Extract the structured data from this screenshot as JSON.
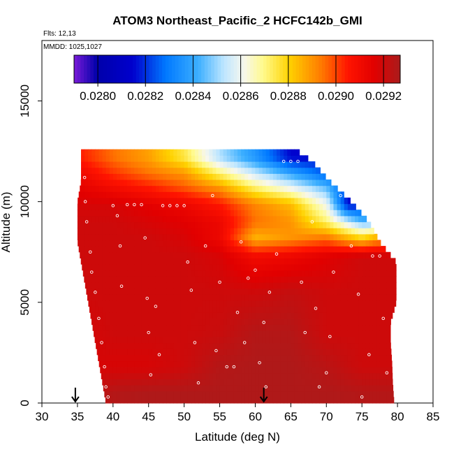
{
  "header": {
    "title": "ATOM3 Northeast_Pacific_2 HCFC142b_GMI",
    "flights": "Flts: 12,13",
    "dates": "MMDD: 1025,1027"
  },
  "colors": {
    "low": "#7a1bd8",
    "mid": "#f7f7ee",
    "high": "#b22222",
    "points": "#ffffff",
    "arrow": "#000000"
  },
  "chart_data": {
    "type": "heatmap",
    "title": "ATOM3 Northeast_Pacific_2 HCFC142b_GMI",
    "xlabel": "Latitude (deg N)",
    "ylabel": "Altitude (m)",
    "xlim": [
      30,
      85
    ],
    "ylim": [
      0,
      18000
    ],
    "x_ticks": [
      30,
      35,
      40,
      45,
      50,
      55,
      60,
      65,
      70,
      75,
      80,
      85
    ],
    "y_ticks": [
      0,
      5000,
      10000,
      15000
    ],
    "y_tick_labels": [
      "0",
      "5000",
      "10000",
      "15000"
    ],
    "colorbar": {
      "min": 0.0279,
      "max": 0.02927,
      "ticks": [
        0.028,
        0.0282,
        0.0284,
        0.0286,
        0.0288,
        0.029,
        0.0292
      ],
      "tick_labels": [
        "0.0280",
        "0.0282",
        "0.0284",
        "0.0286",
        "0.0288",
        "0.0290",
        "0.0292"
      ],
      "placement": "top inside plot"
    },
    "arrows_lat": [
      34.7,
      61.2
    ],
    "envelope": [
      {
        "y": 0,
        "x0": 39.0,
        "x1": 79.5
      },
      {
        "y": 1000,
        "x0": 38.5,
        "x1": 79.3
      },
      {
        "y": 2000,
        "x0": 38.0,
        "x1": 79.2
      },
      {
        "y": 3000,
        "x0": 37.5,
        "x1": 79.0
      },
      {
        "y": 4000,
        "x0": 37.0,
        "x1": 79.0
      },
      {
        "y": 5000,
        "x0": 36.5,
        "x1": 79.8
      },
      {
        "y": 6000,
        "x0": 36.0,
        "x1": 79.8
      },
      {
        "y": 7000,
        "x0": 35.5,
        "x1": 79.8
      },
      {
        "y": 8000,
        "x0": 35.0,
        "x1": 77.5
      },
      {
        "y": 9000,
        "x0": 35.0,
        "x1": 76.0
      },
      {
        "y": 10000,
        "x0": 35.0,
        "x1": 73.5
      },
      {
        "y": 11000,
        "x0": 35.5,
        "x1": 70.5
      },
      {
        "y": 12000,
        "x0": 35.5,
        "x1": 68.0
      },
      {
        "y": 12500,
        "x0": 35.5,
        "x1": 66.0
      }
    ],
    "field_rows": [
      {
        "y": 12200,
        "values": [
          {
            "x": 35,
            "v": 0.02905
          },
          {
            "x": 40,
            "v": 0.02895
          },
          {
            "x": 45,
            "v": 0.02888
          },
          {
            "x": 50,
            "v": 0.02875
          },
          {
            "x": 55,
            "v": 0.02852
          },
          {
            "x": 60,
            "v": 0.02836
          },
          {
            "x": 65,
            "v": 0.02815
          }
        ]
      },
      {
        "y": 11400,
        "values": [
          {
            "x": 35,
            "v": 0.02912
          },
          {
            "x": 40,
            "v": 0.02902
          },
          {
            "x": 45,
            "v": 0.02895
          },
          {
            "x": 50,
            "v": 0.0289
          },
          {
            "x": 55,
            "v": 0.02872
          },
          {
            "x": 60,
            "v": 0.02855
          },
          {
            "x": 65,
            "v": 0.0284
          },
          {
            "x": 70,
            "v": 0.02825
          }
        ]
      },
      {
        "y": 10700,
        "values": [
          {
            "x": 35,
            "v": 0.02915
          },
          {
            "x": 40,
            "v": 0.0291
          },
          {
            "x": 45,
            "v": 0.02905
          },
          {
            "x": 50,
            "v": 0.02898
          },
          {
            "x": 55,
            "v": 0.0289
          },
          {
            "x": 60,
            "v": 0.02872
          },
          {
            "x": 65,
            "v": 0.0286
          },
          {
            "x": 70,
            "v": 0.02845
          },
          {
            "x": 73,
            "v": 0.0282
          }
        ]
      },
      {
        "y": 9900,
        "values": [
          {
            "x": 35,
            "v": 0.02918
          },
          {
            "x": 40,
            "v": 0.02918
          },
          {
            "x": 45,
            "v": 0.02915
          },
          {
            "x": 50,
            "v": 0.02912
          },
          {
            "x": 55,
            "v": 0.02905
          },
          {
            "x": 60,
            "v": 0.02892
          },
          {
            "x": 65,
            "v": 0.02884
          },
          {
            "x": 70,
            "v": 0.0286
          },
          {
            "x": 73,
            "v": 0.02815
          }
        ]
      },
      {
        "y": 9000,
        "values": [
          {
            "x": 35,
            "v": 0.0292
          },
          {
            "x": 40,
            "v": 0.0292
          },
          {
            "x": 45,
            "v": 0.02918
          },
          {
            "x": 50,
            "v": 0.02916
          },
          {
            "x": 55,
            "v": 0.02912
          },
          {
            "x": 60,
            "v": 0.02895
          },
          {
            "x": 65,
            "v": 0.0289
          },
          {
            "x": 70,
            "v": 0.02872
          },
          {
            "x": 75,
            "v": 0.02845
          }
        ]
      },
      {
        "y": 8200,
        "values": [
          {
            "x": 35,
            "v": 0.0292
          },
          {
            "x": 40,
            "v": 0.0292
          },
          {
            "x": 45,
            "v": 0.0292
          },
          {
            "x": 50,
            "v": 0.02918
          },
          {
            "x": 55,
            "v": 0.02912
          },
          {
            "x": 60,
            "v": 0.02885
          },
          {
            "x": 65,
            "v": 0.0289
          },
          {
            "x": 70,
            "v": 0.02895
          },
          {
            "x": 75,
            "v": 0.0288
          },
          {
            "x": 77,
            "v": 0.02887
          }
        ]
      },
      {
        "y": 7300,
        "values": [
          {
            "x": 35,
            "v": 0.0292
          },
          {
            "x": 40,
            "v": 0.0292
          },
          {
            "x": 45,
            "v": 0.0292
          },
          {
            "x": 50,
            "v": 0.0292
          },
          {
            "x": 55,
            "v": 0.02918
          },
          {
            "x": 60,
            "v": 0.0291
          },
          {
            "x": 65,
            "v": 0.02912
          },
          {
            "x": 70,
            "v": 0.02916
          },
          {
            "x": 75,
            "v": 0.0292
          },
          {
            "x": 80,
            "v": 0.0292
          }
        ]
      },
      {
        "y": 5500,
        "values": [
          {
            "x": 35,
            "v": 0.0292
          },
          {
            "x": 40,
            "v": 0.0292
          },
          {
            "x": 45,
            "v": 0.0292
          },
          {
            "x": 50,
            "v": 0.0292
          },
          {
            "x": 55,
            "v": 0.0292
          },
          {
            "x": 60,
            "v": 0.0292
          },
          {
            "x": 65,
            "v": 0.02922
          },
          {
            "x": 70,
            "v": 0.0292
          },
          {
            "x": 75,
            "v": 0.0292
          },
          {
            "x": 80,
            "v": 0.0292
          }
        ]
      },
      {
        "y": 3500,
        "values": [
          {
            "x": 35,
            "v": 0.02918
          },
          {
            "x": 40,
            "v": 0.0292
          },
          {
            "x": 45,
            "v": 0.0292
          },
          {
            "x": 50,
            "v": 0.0292
          },
          {
            "x": 55,
            "v": 0.02921
          },
          {
            "x": 60,
            "v": 0.02925
          },
          {
            "x": 65,
            "v": 0.02925
          },
          {
            "x": 70,
            "v": 0.0292
          },
          {
            "x": 75,
            "v": 0.0292
          },
          {
            "x": 80,
            "v": 0.0292
          }
        ]
      },
      {
        "y": 1800,
        "values": [
          {
            "x": 35,
            "v": 0.02918
          },
          {
            "x": 40,
            "v": 0.02918
          },
          {
            "x": 45,
            "v": 0.02918
          },
          {
            "x": 50,
            "v": 0.0292
          },
          {
            "x": 55,
            "v": 0.02925
          },
          {
            "x": 60,
            "v": 0.02926
          },
          {
            "x": 65,
            "v": 0.02926
          },
          {
            "x": 70,
            "v": 0.02924
          },
          {
            "x": 75,
            "v": 0.0292
          },
          {
            "x": 80,
            "v": 0.0292
          }
        ]
      },
      {
        "y": 500,
        "values": [
          {
            "x": 35,
            "v": 0.0292
          },
          {
            "x": 40,
            "v": 0.02925
          },
          {
            "x": 45,
            "v": 0.02926
          },
          {
            "x": 50,
            "v": 0.02926
          },
          {
            "x": 55,
            "v": 0.02926
          },
          {
            "x": 60,
            "v": 0.02926
          },
          {
            "x": 65,
            "v": 0.02926
          },
          {
            "x": 70,
            "v": 0.02926
          },
          {
            "x": 75,
            "v": 0.02925
          },
          {
            "x": 80,
            "v": 0.02925
          }
        ]
      }
    ],
    "flight_tracks": [
      {
        "x": 35.2,
        "y": 12400
      },
      {
        "x": 36.0,
        "y": 11200
      },
      {
        "x": 36.1,
        "y": 10000
      },
      {
        "x": 36.3,
        "y": 9000
      },
      {
        "x": 36.8,
        "y": 7500
      },
      {
        "x": 37.0,
        "y": 6500
      },
      {
        "x": 37.5,
        "y": 5500
      },
      {
        "x": 38.0,
        "y": 4200
      },
      {
        "x": 38.4,
        "y": 3000
      },
      {
        "x": 38.8,
        "y": 1800
      },
      {
        "x": 39.0,
        "y": 800
      },
      {
        "x": 39.3,
        "y": 300
      },
      {
        "x": 40.0,
        "y": 9800
      },
      {
        "x": 40.6,
        "y": 9300
      },
      {
        "x": 41.0,
        "y": 7800
      },
      {
        "x": 41.2,
        "y": 5800
      },
      {
        "x": 42.0,
        "y": 9850
      },
      {
        "x": 43.0,
        "y": 9850
      },
      {
        "x": 44.0,
        "y": 9850
      },
      {
        "x": 44.5,
        "y": 8200
      },
      {
        "x": 44.8,
        "y": 5200
      },
      {
        "x": 45.0,
        "y": 3500
      },
      {
        "x": 45.3,
        "y": 1400
      },
      {
        "x": 46.0,
        "y": 4800
      },
      {
        "x": 46.5,
        "y": 2400
      },
      {
        "x": 47.0,
        "y": 9800
      },
      {
        "x": 48.0,
        "y": 9800
      },
      {
        "x": 49.0,
        "y": 9800
      },
      {
        "x": 50.0,
        "y": 9800
      },
      {
        "x": 50.5,
        "y": 7000
      },
      {
        "x": 51.0,
        "y": 5600
      },
      {
        "x": 51.5,
        "y": 3000
      },
      {
        "x": 52.0,
        "y": 1000
      },
      {
        "x": 53.0,
        "y": 7800
      },
      {
        "x": 54.0,
        "y": 10300
      },
      {
        "x": 54.5,
        "y": 2600
      },
      {
        "x": 55.0,
        "y": 6000
      },
      {
        "x": 56.0,
        "y": 1800
      },
      {
        "x": 57.0,
        "y": 1800
      },
      {
        "x": 57.5,
        "y": 4500
      },
      {
        "x": 58.0,
        "y": 8000
      },
      {
        "x": 58.5,
        "y": 3000
      },
      {
        "x": 59.0,
        "y": 6200
      },
      {
        "x": 60.0,
        "y": 6600
      },
      {
        "x": 60.6,
        "y": 2000
      },
      {
        "x": 61.2,
        "y": 4000
      },
      {
        "x": 61.5,
        "y": 800
      },
      {
        "x": 62.0,
        "y": 5500
      },
      {
        "x": 63.0,
        "y": 7400
      },
      {
        "x": 64.0,
        "y": 12000
      },
      {
        "x": 65.0,
        "y": 12000
      },
      {
        "x": 66.0,
        "y": 12000
      },
      {
        "x": 66.5,
        "y": 6000
      },
      {
        "x": 67.0,
        "y": 3500
      },
      {
        "x": 68.0,
        "y": 9000
      },
      {
        "x": 68.5,
        "y": 4700
      },
      {
        "x": 69.0,
        "y": 800
      },
      {
        "x": 70.0,
        "y": 1500
      },
      {
        "x": 70.5,
        "y": 3300
      },
      {
        "x": 71.0,
        "y": 6500
      },
      {
        "x": 72.0,
        "y": 10300
      },
      {
        "x": 73.0,
        "y": 10300
      },
      {
        "x": 73.5,
        "y": 7800
      },
      {
        "x": 74.5,
        "y": 5400
      },
      {
        "x": 75.0,
        "y": 300
      },
      {
        "x": 76.0,
        "y": 2400
      },
      {
        "x": 76.5,
        "y": 7300
      },
      {
        "x": 77.5,
        "y": 7300
      },
      {
        "x": 78.0,
        "y": 4200
      },
      {
        "x": 78.5,
        "y": 1500
      },
      {
        "x": 79.5,
        "y": 7300
      }
    ]
  }
}
